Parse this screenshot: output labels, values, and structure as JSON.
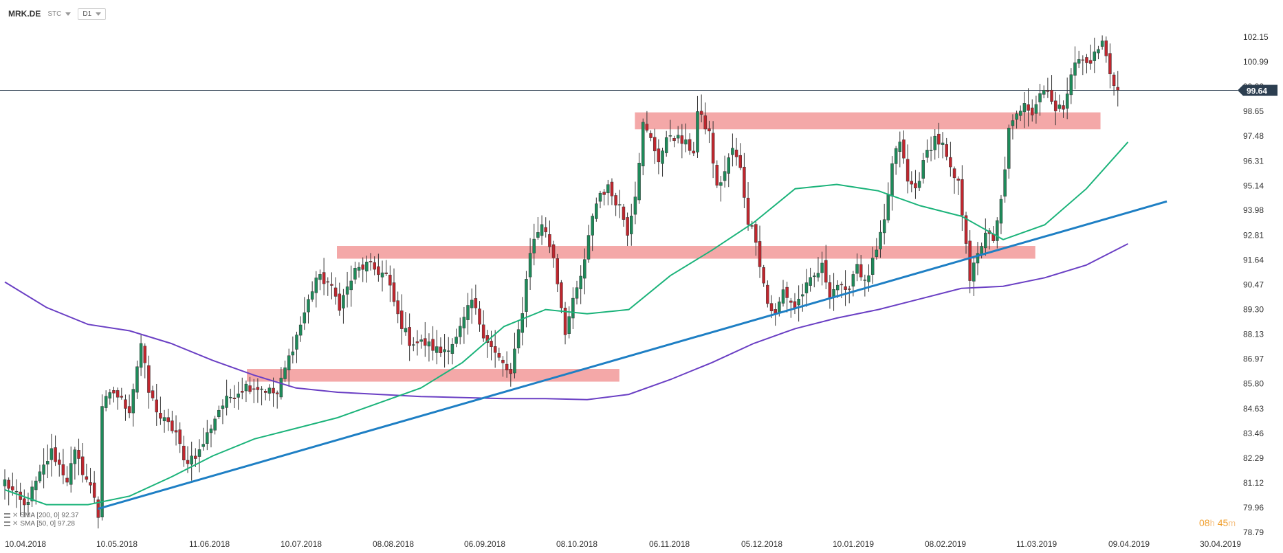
{
  "toolbar": {
    "symbol": "MRK.DE",
    "type": "STC",
    "interval": "D1"
  },
  "legend": [
    {
      "text": "SMA [200, 0] 92.37",
      "color": "#6a3fc4"
    },
    {
      "text": "SMA [50, 0] 97.28",
      "color": "#1bb37a"
    }
  ],
  "countdown": {
    "hours": "08",
    "hours_unit": "h",
    "minutes": "45",
    "minutes_unit": "m"
  },
  "chart_data": {
    "type": "candlestick",
    "current_price": "99.64",
    "x_labels": [
      "10.04.2018",
      "10.05.2018",
      "11.06.2018",
      "10.07.2018",
      "08.08.2018",
      "06.09.2018",
      "08.10.2018",
      "06.11.2018",
      "05.12.2018",
      "10.01.2019",
      "08.02.2019",
      "11.03.2019",
      "09.04.2019",
      "30.04.2019"
    ],
    "y_ticks": [
      "102.15",
      "100.99",
      "99.82",
      "98.65",
      "97.48",
      "96.31",
      "95.14",
      "93.98",
      "92.81",
      "91.64",
      "90.47",
      "89.30",
      "88.13",
      "86.97",
      "85.80",
      "84.63",
      "83.46",
      "82.29",
      "81.12",
      "79.96",
      "78.79"
    ],
    "y_range": [
      78.79,
      103.3
    ],
    "price_anchors": [
      {
        "i": 0,
        "p": 81.2
      },
      {
        "i": 5,
        "p": 80.0
      },
      {
        "i": 12,
        "p": 82.6
      },
      {
        "i": 16,
        "p": 81.3
      },
      {
        "i": 18,
        "p": 82.5
      },
      {
        "i": 23,
        "p": 80.5
      },
      {
        "i": 24,
        "p": 79.6
      },
      {
        "i": 25,
        "p": 84.8
      },
      {
        "i": 28,
        "p": 85.4
      },
      {
        "i": 32,
        "p": 84.6
      },
      {
        "i": 35,
        "p": 87.7
      },
      {
        "i": 37,
        "p": 85.4
      },
      {
        "i": 40,
        "p": 84.2
      },
      {
        "i": 44,
        "p": 83.5
      },
      {
        "i": 46,
        "p": 82.1
      },
      {
        "i": 50,
        "p": 82.6
      },
      {
        "i": 55,
        "p": 84.6
      },
      {
        "i": 58,
        "p": 85.2
      },
      {
        "i": 62,
        "p": 85.7
      },
      {
        "i": 66,
        "p": 85.6
      },
      {
        "i": 70,
        "p": 85.3
      },
      {
        "i": 72,
        "p": 86.5
      },
      {
        "i": 76,
        "p": 88.6
      },
      {
        "i": 80,
        "p": 90.8
      },
      {
        "i": 83,
        "p": 90.6
      },
      {
        "i": 86,
        "p": 89.5
      },
      {
        "i": 90,
        "p": 91.1
      },
      {
        "i": 93,
        "p": 91.4
      },
      {
        "i": 98,
        "p": 90.9
      },
      {
        "i": 101,
        "p": 89.0
      },
      {
        "i": 104,
        "p": 87.8
      },
      {
        "i": 108,
        "p": 87.7
      },
      {
        "i": 112,
        "p": 87.3
      },
      {
        "i": 116,
        "p": 87.9
      },
      {
        "i": 120,
        "p": 89.7
      },
      {
        "i": 123,
        "p": 88.2
      },
      {
        "i": 126,
        "p": 87.2
      },
      {
        "i": 130,
        "p": 86.2
      },
      {
        "i": 133,
        "p": 89.3
      },
      {
        "i": 135,
        "p": 92.1
      },
      {
        "i": 138,
        "p": 93.4
      },
      {
        "i": 141,
        "p": 91.8
      },
      {
        "i": 144,
        "p": 88.3
      },
      {
        "i": 146,
        "p": 89.6
      },
      {
        "i": 149,
        "p": 91.5
      },
      {
        "i": 151,
        "p": 93.8
      },
      {
        "i": 153,
        "p": 94.8
      },
      {
        "i": 155,
        "p": 95.0
      },
      {
        "i": 158,
        "p": 94.2
      },
      {
        "i": 160,
        "p": 93.0
      },
      {
        "i": 162,
        "p": 94.8
      },
      {
        "i": 164,
        "p": 98.0
      },
      {
        "i": 166,
        "p": 97.3
      },
      {
        "i": 168,
        "p": 96.4
      },
      {
        "i": 171,
        "p": 97.6
      },
      {
        "i": 174,
        "p": 97.2
      },
      {
        "i": 177,
        "p": 96.8
      },
      {
        "i": 178,
        "p": 98.6
      },
      {
        "i": 181,
        "p": 97.6
      },
      {
        "i": 183,
        "p": 95.0
      },
      {
        "i": 185,
        "p": 95.8
      },
      {
        "i": 187,
        "p": 96.9
      },
      {
        "i": 189,
        "p": 95.9
      },
      {
        "i": 191,
        "p": 93.5
      },
      {
        "i": 193,
        "p": 92.7
      },
      {
        "i": 194,
        "p": 91.5
      },
      {
        "i": 196,
        "p": 89.6
      },
      {
        "i": 198,
        "p": 89.0
      },
      {
        "i": 200,
        "p": 90.2
      },
      {
        "i": 203,
        "p": 89.4
      },
      {
        "i": 205,
        "p": 90.1
      },
      {
        "i": 207,
        "p": 90.6
      },
      {
        "i": 210,
        "p": 91.3
      },
      {
        "i": 212,
        "p": 90.1
      },
      {
        "i": 214,
        "p": 90.5
      },
      {
        "i": 216,
        "p": 90.0
      },
      {
        "i": 219,
        "p": 91.5
      },
      {
        "i": 221,
        "p": 90.5
      },
      {
        "i": 224,
        "p": 92.0
      },
      {
        "i": 226,
        "p": 93.4
      },
      {
        "i": 228,
        "p": 96.1
      },
      {
        "i": 230,
        "p": 97.3
      },
      {
        "i": 232,
        "p": 95.3
      },
      {
        "i": 234,
        "p": 95.0
      },
      {
        "i": 237,
        "p": 96.7
      },
      {
        "i": 239,
        "p": 97.4
      },
      {
        "i": 241,
        "p": 97.0
      },
      {
        "i": 243,
        "p": 95.8
      },
      {
        "i": 245,
        "p": 95.2
      },
      {
        "i": 247,
        "p": 92.6
      },
      {
        "i": 248,
        "p": 90.8
      },
      {
        "i": 250,
        "p": 91.8
      },
      {
        "i": 252,
        "p": 93.0
      },
      {
        "i": 254,
        "p": 92.4
      },
      {
        "i": 256,
        "p": 94.4
      },
      {
        "i": 258,
        "p": 97.7
      },
      {
        "i": 260,
        "p": 98.4
      },
      {
        "i": 262,
        "p": 99.2
      },
      {
        "i": 264,
        "p": 98.6
      },
      {
        "i": 266,
        "p": 99.5
      },
      {
        "i": 268,
        "p": 99.8
      },
      {
        "i": 270,
        "p": 98.6
      },
      {
        "i": 272,
        "p": 98.9
      },
      {
        "i": 274,
        "p": 100.5
      },
      {
        "i": 276,
        "p": 101.1
      },
      {
        "i": 278,
        "p": 100.9
      },
      {
        "i": 280,
        "p": 101.3
      },
      {
        "i": 282,
        "p": 101.9
      },
      {
        "i": 284,
        "p": 100.5
      },
      {
        "i": 286,
        "p": 99.6
      }
    ],
    "sma50": [
      {
        "d": 0,
        "p": 80.8
      },
      {
        "d": 1,
        "p": 80.1
      },
      {
        "d": 2,
        "p": 80.1
      },
      {
        "d": 3,
        "p": 80.5
      },
      {
        "d": 4,
        "p": 81.4
      },
      {
        "d": 5,
        "p": 82.4
      },
      {
        "d": 6,
        "p": 83.2
      },
      {
        "d": 7,
        "p": 83.7
      },
      {
        "d": 8,
        "p": 84.2
      },
      {
        "d": 9,
        "p": 84.9
      },
      {
        "d": 10,
        "p": 85.6
      },
      {
        "d": 11,
        "p": 86.8
      },
      {
        "d": 12,
        "p": 88.5
      },
      {
        "d": 13,
        "p": 89.3
      },
      {
        "d": 14,
        "p": 89.1
      },
      {
        "d": 15,
        "p": 89.3
      },
      {
        "d": 16,
        "p": 90.9
      },
      {
        "d": 17,
        "p": 92.1
      },
      {
        "d": 18,
        "p": 93.4
      },
      {
        "d": 19,
        "p": 95.0
      },
      {
        "d": 20,
        "p": 95.2
      },
      {
        "d": 21,
        "p": 94.9
      },
      {
        "d": 22,
        "p": 94.2
      },
      {
        "d": 23,
        "p": 93.7
      },
      {
        "d": 24,
        "p": 92.6
      },
      {
        "d": 25,
        "p": 93.3
      },
      {
        "d": 26,
        "p": 95.0
      },
      {
        "d": 27,
        "p": 97.2
      }
    ],
    "sma200": [
      {
        "d": 0,
        "p": 90.6
      },
      {
        "d": 1,
        "p": 89.4
      },
      {
        "d": 2,
        "p": 88.6
      },
      {
        "d": 3,
        "p": 88.3
      },
      {
        "d": 4,
        "p": 87.7
      },
      {
        "d": 5,
        "p": 86.9
      },
      {
        "d": 6,
        "p": 86.2
      },
      {
        "d": 7,
        "p": 85.6
      },
      {
        "d": 8,
        "p": 85.4
      },
      {
        "d": 9,
        "p": 85.3
      },
      {
        "d": 10,
        "p": 85.2
      },
      {
        "d": 11,
        "p": 85.15
      },
      {
        "d": 12,
        "p": 85.1
      },
      {
        "d": 13,
        "p": 85.1
      },
      {
        "d": 14,
        "p": 85.05
      },
      {
        "d": 15,
        "p": 85.3
      },
      {
        "d": 16,
        "p": 86.0
      },
      {
        "d": 17,
        "p": 86.8
      },
      {
        "d": 18,
        "p": 87.7
      },
      {
        "d": 19,
        "p": 88.4
      },
      {
        "d": 20,
        "p": 88.9
      },
      {
        "d": 21,
        "p": 89.3
      },
      {
        "d": 22,
        "p": 89.8
      },
      {
        "d": 23,
        "p": 90.3
      },
      {
        "d": 24,
        "p": 90.4
      },
      {
        "d": 25,
        "p": 90.8
      },
      {
        "d": 26,
        "p": 91.4
      },
      {
        "d": 27,
        "p": 92.4
      }
    ],
    "trendline": [
      {
        "date": "10.05.2018",
        "p": 79.9
      },
      {
        "date": "30.04.2019",
        "p": 94.4
      }
    ],
    "resistance_zones": [
      {
        "from": "27.06.2018",
        "to": "25.10.2018",
        "low": 85.9,
        "high": 86.5
      },
      {
        "from": "26.07.2018",
        "to": "08.03.2019",
        "low": 91.7,
        "high": 92.3
      },
      {
        "from": "30.10.2018",
        "to": "29.03.2019",
        "low": 97.8,
        "high": 98.6
      }
    ],
    "colors": {
      "up": "#1e8a5a",
      "down": "#c0262e",
      "zone": "#f4a8a8",
      "trend": "#1e7fc4",
      "sma50": "#1bb37a",
      "sma200": "#6a3fc4",
      "price_line": "#2c3e50"
    }
  }
}
